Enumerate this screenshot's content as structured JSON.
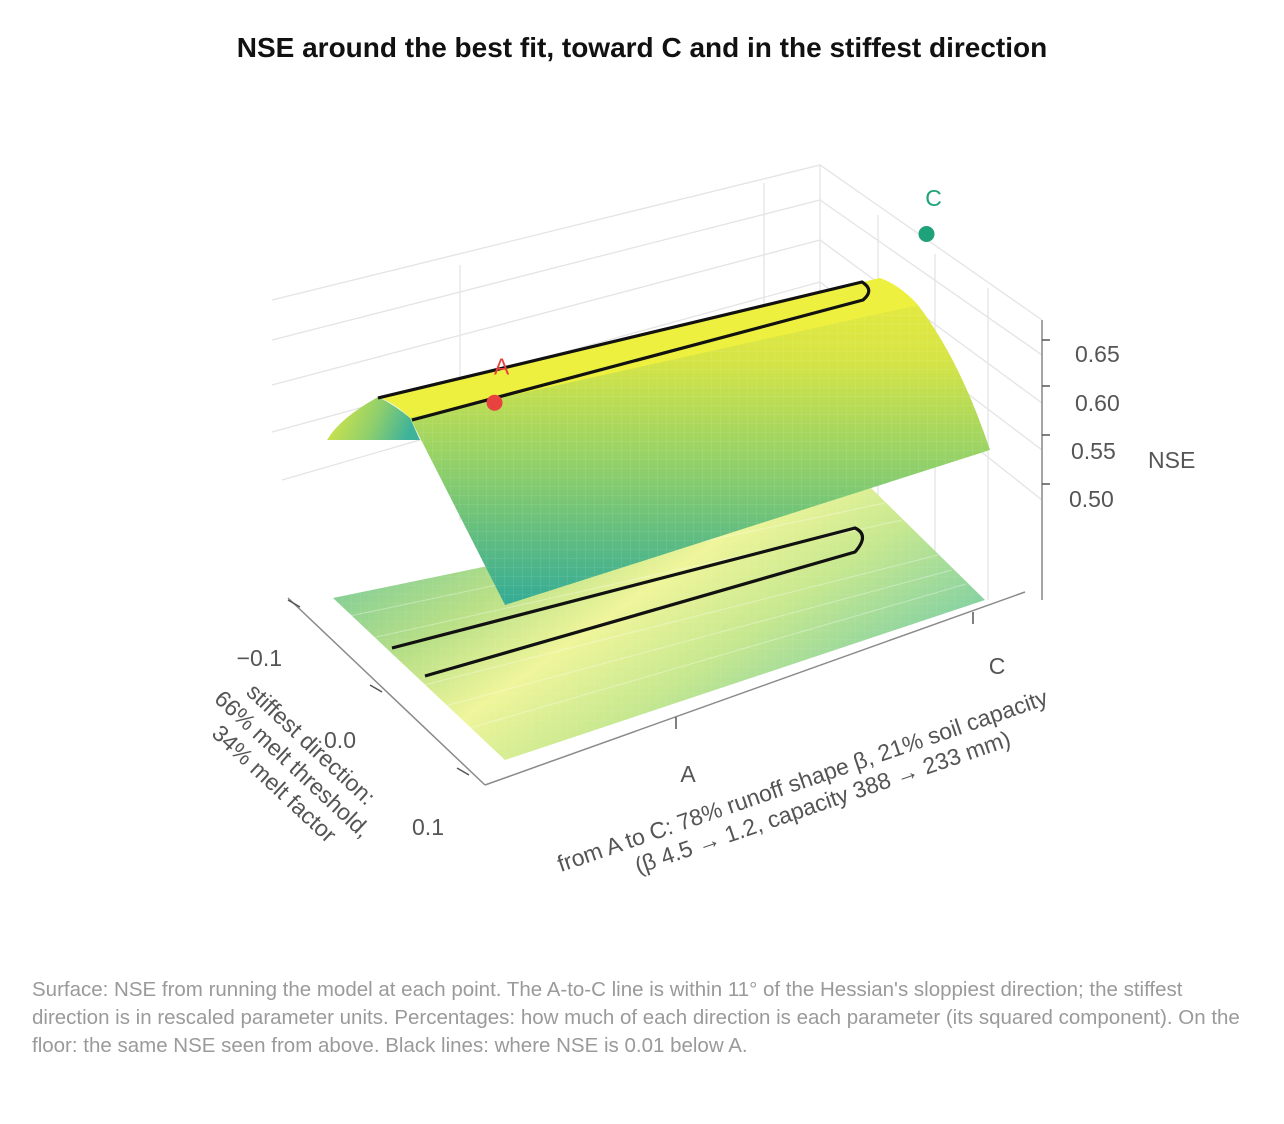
{
  "chart_data": {
    "type": "surface3d",
    "title": "NSE around the best fit, toward C and in the stiffest direction",
    "x_axis": {
      "label_lines": [
        "from A to C: 78% runoff shape β, 21% soil capacity",
        "(β 4.5 → 1.2, capacity 388 → 233 mm)"
      ],
      "ticks": [
        "A",
        "C"
      ]
    },
    "y_axis": {
      "label_lines": [
        "stiffest direction:",
        "66% melt threshold,",
        "34% melt factor"
      ],
      "ticks": [
        "−0.1",
        "0.0",
        "0.1"
      ],
      "range": [
        -0.12,
        0.12
      ]
    },
    "z_axis": {
      "label": "NSE",
      "ticks": [
        "0.50",
        "0.55",
        "0.60",
        "0.65"
      ],
      "tick_values": [
        0.5,
        0.55,
        0.6,
        0.65
      ],
      "range": [
        0.45,
        0.685
      ]
    },
    "colorscale": [
      "#3db8a0",
      "#6fc98a",
      "#b5dc5c",
      "#e8ec3e"
    ],
    "points": [
      {
        "label": "A",
        "x_pos": 0.2,
        "stiff": 0.0,
        "nse": 0.66,
        "color": "#e8423f"
      },
      {
        "label": "C",
        "x_pos": 1.0,
        "stiff": 0.0,
        "nse": 0.672,
        "color": "#1fa27a"
      }
    ],
    "contour": {
      "level_label": "NSE 0.01 below A",
      "color": "#111111"
    },
    "floor_projection": true,
    "grid": true
  },
  "caption": "Surface: NSE from running the model at each point. The A-to-C line is within 11° of the Hessian's sloppiest direction; the stiffest direction is in rescaled parameter units. Percentages: how much of each direction is each parameter (its squared component). On the floor: the same NSE seen from above. Black lines: where NSE is 0.01 below A."
}
